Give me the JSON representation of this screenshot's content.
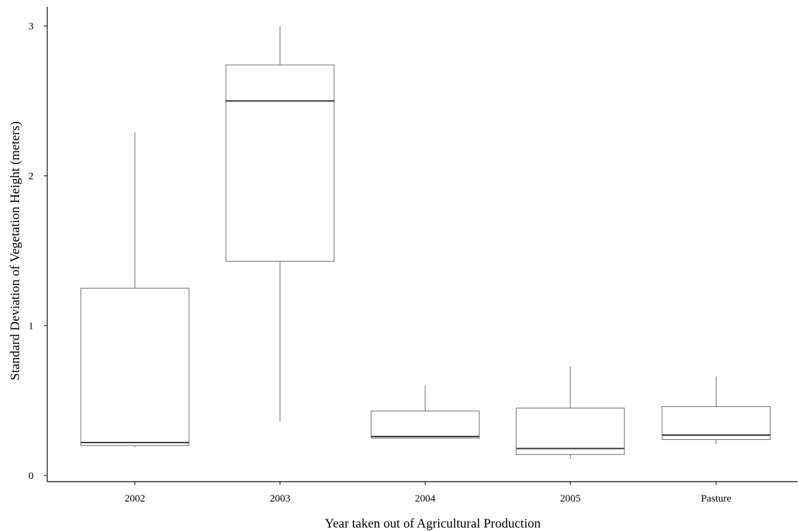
{
  "chart_data": {
    "type": "boxplot",
    "title": "",
    "xlabel": "Year taken out of Agricultural Production",
    "ylabel": "Standard Deviation of Vegetation Height (meters)",
    "ylim": [
      0,
      3.1
    ],
    "yticks": [
      0,
      1,
      2,
      3
    ],
    "grid": false,
    "categories": [
      "2002",
      "2003",
      "2004",
      "2005",
      "Pasture"
    ],
    "boxes": [
      {
        "category": "2002",
        "whisker_low": 0.19,
        "q1": 0.2,
        "median": 0.22,
        "q3": 1.25,
        "whisker_high": 2.29
      },
      {
        "category": "2003",
        "whisker_low": 0.36,
        "q1": 1.43,
        "median": 2.5,
        "q3": 2.74,
        "whisker_high": 3.0
      },
      {
        "category": "2004",
        "whisker_low": 0.25,
        "q1": 0.25,
        "median": 0.26,
        "q3": 0.43,
        "whisker_high": 0.6
      },
      {
        "category": "2005",
        "whisker_low": 0.11,
        "q1": 0.14,
        "median": 0.18,
        "q3": 0.45,
        "whisker_high": 0.73
      },
      {
        "category": "Pasture",
        "whisker_low": 0.21,
        "q1": 0.24,
        "median": 0.27,
        "q3": 0.46,
        "whisker_high": 0.66
      }
    ],
    "colors": {
      "box_stroke": "#666666",
      "median": "#333333",
      "axis": "#000000"
    }
  }
}
